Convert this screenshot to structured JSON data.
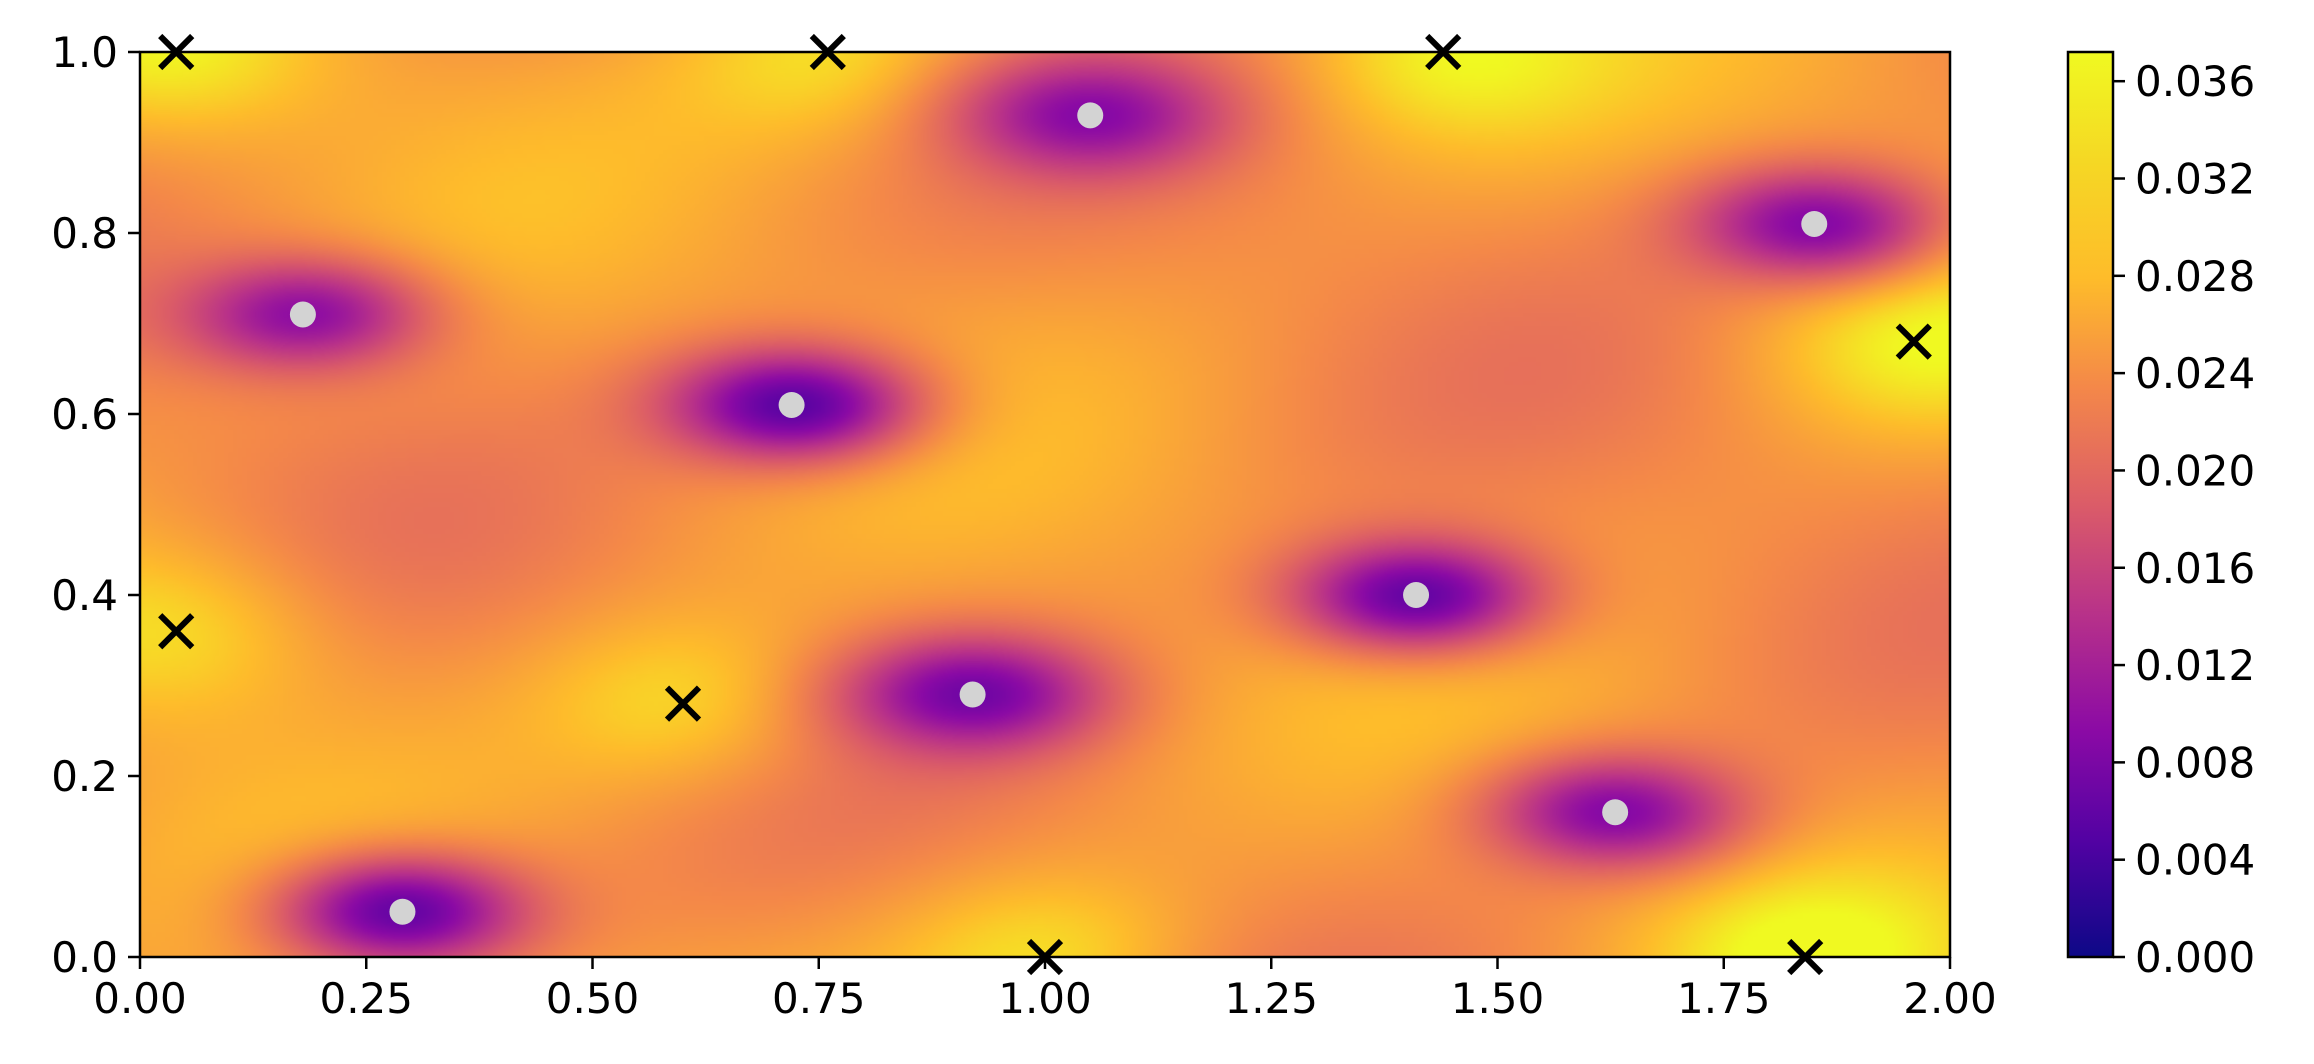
{
  "chart_data": {
    "type": "heatmap",
    "title": "",
    "xlabel": "",
    "ylabel": "",
    "xlim": [
      0.0,
      2.0
    ],
    "ylim": [
      0.0,
      1.0
    ],
    "grid": false,
    "x_ticks": [
      "0.00",
      "0.25",
      "0.50",
      "0.75",
      "1.00",
      "1.25",
      "1.50",
      "1.75",
      "2.00"
    ],
    "y_ticks": [
      "0.0",
      "0.2",
      "0.4",
      "0.6",
      "0.8",
      "1.0"
    ],
    "colormap": "plasma",
    "colorbar": {
      "range": [
        0.0,
        0.0372
      ],
      "ticks": [
        "0.000",
        "0.004",
        "0.008",
        "0.012",
        "0.016",
        "0.020",
        "0.024",
        "0.028",
        "0.032",
        "0.036"
      ]
    },
    "field_base_value": 0.028,
    "minima": [
      {
        "x": 0.29,
        "y": 0.05,
        "value": 0.007
      },
      {
        "x": 0.18,
        "y": 0.71,
        "value": 0.011
      },
      {
        "x": 0.72,
        "y": 0.61,
        "value": 0.006
      },
      {
        "x": 0.92,
        "y": 0.29,
        "value": 0.008
      },
      {
        "x": 1.05,
        "y": 0.93,
        "value": 0.01
      },
      {
        "x": 1.41,
        "y": 0.4,
        "value": 0.007
      },
      {
        "x": 1.63,
        "y": 0.16,
        "value": 0.01
      },
      {
        "x": 1.85,
        "y": 0.81,
        "value": 0.01
      }
    ],
    "maxima": [
      {
        "x": 0.04,
        "y": 1.0
      },
      {
        "x": 0.76,
        "y": 1.0
      },
      {
        "x": 1.44,
        "y": 1.0
      },
      {
        "x": 1.96,
        "y": 0.68
      },
      {
        "x": 0.04,
        "y": 0.36
      },
      {
        "x": 0.6,
        "y": 0.28
      },
      {
        "x": 1.0,
        "y": 0.0
      },
      {
        "x": 1.84,
        "y": 0.0
      }
    ],
    "colors": {
      "minima_marker": "#d3d3d3",
      "maxima_marker": "#000000"
    }
  }
}
